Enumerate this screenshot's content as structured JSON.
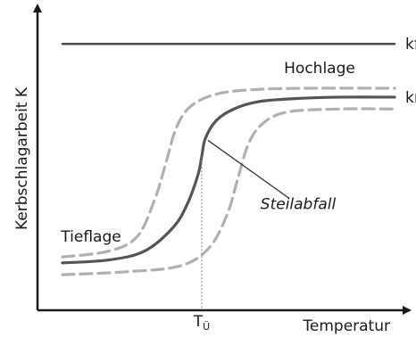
{
  "chart_data": {
    "type": "line",
    "title": "",
    "xlabel": "Temperatur",
    "ylabel": "Kerbschlagarbeit K",
    "xlim": [
      0,
      100
    ],
    "ylim": [
      0,
      100
    ],
    "x_ticks": [
      {
        "x": 46,
        "label_main": "T",
        "label_sub": "Ü"
      }
    ],
    "series": [
      {
        "name": "kfz",
        "style": "solid",
        "color": "#4a4a4a",
        "points": [
          [
            7,
            90
          ],
          [
            100,
            90
          ]
        ]
      },
      {
        "name": "krz",
        "style": "solid",
        "color": "#555555",
        "points": [
          [
            7,
            16
          ],
          [
            20,
            17
          ],
          [
            30,
            20
          ],
          [
            38,
            28
          ],
          [
            42,
            36
          ],
          [
            45,
            46
          ],
          [
            46,
            52
          ],
          [
            47,
            58
          ],
          [
            50,
            64
          ],
          [
            55,
            68
          ],
          [
            62,
            70.5
          ],
          [
            72,
            71.5
          ],
          [
            85,
            72
          ],
          [
            100,
            72
          ]
        ]
      },
      {
        "name": "",
        "style": "dashed",
        "color": "#b0b0b0",
        "points": [
          [
            7,
            18
          ],
          [
            20,
            20
          ],
          [
            28,
            25
          ],
          [
            33,
            38
          ],
          [
            36,
            50
          ],
          [
            39,
            62
          ],
          [
            43,
            69
          ],
          [
            50,
            73
          ],
          [
            60,
            74.5
          ],
          [
            75,
            75
          ],
          [
            100,
            75
          ]
        ]
      },
      {
        "name": "",
        "style": "dashed",
        "color": "#b0b0b0",
        "points": [
          [
            7,
            12
          ],
          [
            25,
            13
          ],
          [
            40,
            15
          ],
          [
            48,
            21
          ],
          [
            53,
            32
          ],
          [
            56,
            44
          ],
          [
            59,
            56
          ],
          [
            63,
            63
          ],
          [
            70,
            67
          ],
          [
            85,
            68
          ],
          [
            100,
            68
          ]
        ]
      }
    ],
    "annotations": [
      {
        "text": "kfz",
        "x": 103,
        "y": 90,
        "italic": false
      },
      {
        "text": "krz",
        "x": 103,
        "y": 72,
        "italic": false
      },
      {
        "text": "Hochlage",
        "x": 79,
        "y": 82,
        "italic": false
      },
      {
        "text": "Tieflage",
        "x": 15,
        "y": 25,
        "italic": false
      },
      {
        "text": "Steilabfall",
        "x": 73,
        "y": 36,
        "italic": true,
        "pointer_to": [
          47,
          58
        ]
      }
    ],
    "grid": false,
    "legend": "none"
  }
}
